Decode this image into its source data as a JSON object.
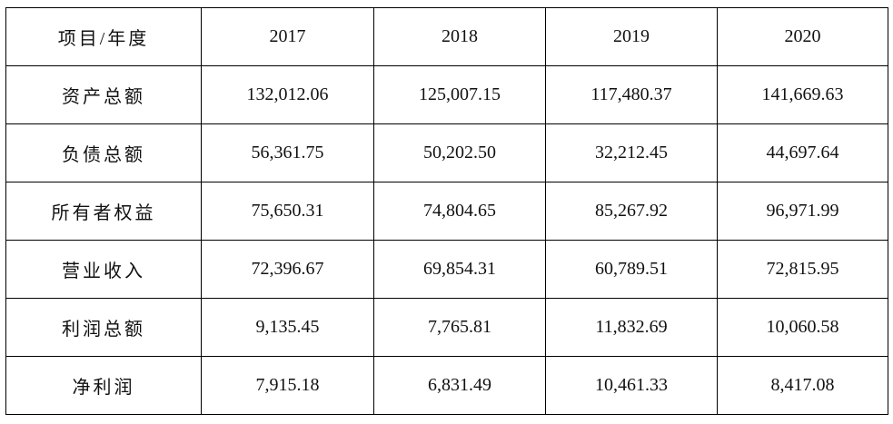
{
  "table": {
    "header": [
      "项目/年度",
      "2017",
      "2018",
      "2019",
      "2020"
    ],
    "rows": [
      [
        "资产总额",
        "132,012.06",
        "125,007.15",
        "117,480.37",
        "141,669.63"
      ],
      [
        "负债总额",
        "56,361.75",
        "50,202.50",
        "32,212.45",
        "44,697.64"
      ],
      [
        "所有者权益",
        "75,650.31",
        "74,804.65",
        "85,267.92",
        "96,971.99"
      ],
      [
        "营业收入",
        "72,396.67",
        "69,854.31",
        "60,789.51",
        "72,815.95"
      ],
      [
        "利润总额",
        "9,135.45",
        "7,765.81",
        "11,832.69",
        "10,060.58"
      ],
      [
        "净利润",
        "7,915.18",
        "6,831.49",
        "10,461.33",
        "8,417.08"
      ]
    ]
  }
}
